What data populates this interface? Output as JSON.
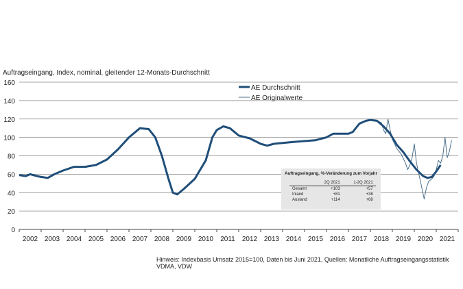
{
  "chart_data": {
    "type": "line",
    "title": "Auftragseingang, Index, nominal, gleitender 12-Monats-Durchschnitt",
    "ylim": [
      0,
      160
    ],
    "yticks": [
      0,
      20,
      40,
      60,
      80,
      100,
      120,
      140,
      160
    ],
    "xlim": [
      2002,
      2022
    ],
    "xtick_labels": [
      "2002",
      "2003",
      "2004",
      "2005",
      "2006",
      "2007",
      "2008",
      "2009",
      "2010",
      "2011",
      "2012",
      "2013",
      "2014",
      "2015",
      "2016",
      "2017",
      "2018",
      "2019",
      "2020",
      "2021"
    ],
    "grid": true,
    "legend": "top-right",
    "series": [
      {
        "name": "AE Durchschnitt",
        "color": "#1f4e79",
        "points": [
          [
            2002.0,
            59
          ],
          [
            2002.3,
            58
          ],
          [
            2002.5,
            60
          ],
          [
            2002.8,
            58
          ],
          [
            2003.0,
            57
          ],
          [
            2003.3,
            56
          ],
          [
            2003.6,
            60
          ],
          [
            2004.0,
            64
          ],
          [
            2004.5,
            68
          ],
          [
            2005.0,
            68
          ],
          [
            2005.5,
            70
          ],
          [
            2006.0,
            76
          ],
          [
            2006.5,
            87
          ],
          [
            2007.0,
            100
          ],
          [
            2007.5,
            110
          ],
          [
            2007.9,
            109
          ],
          [
            2008.2,
            100
          ],
          [
            2008.5,
            80
          ],
          [
            2008.8,
            55
          ],
          [
            2009.0,
            40
          ],
          [
            2009.2,
            38
          ],
          [
            2009.5,
            44
          ],
          [
            2010.0,
            55
          ],
          [
            2010.5,
            75
          ],
          [
            2010.8,
            100
          ],
          [
            2011.0,
            108
          ],
          [
            2011.3,
            112
          ],
          [
            2011.6,
            110
          ],
          [
            2012.0,
            102
          ],
          [
            2012.5,
            99
          ],
          [
            2013.0,
            93
          ],
          [
            2013.3,
            91
          ],
          [
            2013.6,
            93
          ],
          [
            2014.0,
            94
          ],
          [
            2014.5,
            95
          ],
          [
            2015.0,
            96
          ],
          [
            2015.5,
            97
          ],
          [
            2016.0,
            100
          ],
          [
            2016.3,
            104
          ],
          [
            2016.6,
            104
          ],
          [
            2017.0,
            104
          ],
          [
            2017.2,
            106
          ],
          [
            2017.5,
            115
          ],
          [
            2017.8,
            118
          ],
          [
            2018.0,
            119
          ],
          [
            2018.3,
            118
          ],
          [
            2018.6,
            112
          ],
          [
            2018.9,
            104
          ],
          [
            2019.2,
            92
          ],
          [
            2019.5,
            84
          ],
          [
            2019.8,
            74
          ],
          [
            2020.1,
            65
          ],
          [
            2020.4,
            58
          ],
          [
            2020.6,
            56
          ],
          [
            2020.8,
            57
          ],
          [
            2021.0,
            63
          ],
          [
            2021.2,
            70
          ]
        ]
      },
      {
        "name": "AE Originalwerte",
        "color": "#4a6f8a",
        "points": [
          [
            2018.3,
            118
          ],
          [
            2018.5,
            116
          ],
          [
            2018.6,
            108
          ],
          [
            2018.7,
            104
          ],
          [
            2018.8,
            120
          ],
          [
            2018.9,
            108
          ],
          [
            2019.0,
            98
          ],
          [
            2019.1,
            93
          ],
          [
            2019.2,
            88
          ],
          [
            2019.4,
            82
          ],
          [
            2019.6,
            72
          ],
          [
            2019.7,
            65
          ],
          [
            2019.8,
            70
          ],
          [
            2019.9,
            78
          ],
          [
            2020.0,
            93
          ],
          [
            2020.1,
            72
          ],
          [
            2020.3,
            50
          ],
          [
            2020.45,
            33
          ],
          [
            2020.55,
            45
          ],
          [
            2020.65,
            52
          ],
          [
            2020.8,
            55
          ],
          [
            2020.9,
            58
          ],
          [
            2021.0,
            65
          ],
          [
            2021.1,
            75
          ],
          [
            2021.2,
            72
          ],
          [
            2021.3,
            80
          ],
          [
            2021.4,
            100
          ],
          [
            2021.5,
            78
          ],
          [
            2021.6,
            85
          ],
          [
            2021.7,
            97
          ]
        ]
      }
    ]
  },
  "inset": {
    "title": "Auftragseingang, %-Veränderung zum Vorjahr",
    "columns": [
      "",
      "2Q 2021",
      "1-2Q 2021"
    ],
    "rows": [
      [
        "Gesamt",
        "+103",
        "+57"
      ],
      [
        "Inland",
        "+81",
        "+38"
      ],
      [
        "Ausland",
        "+114",
        "+68"
      ]
    ]
  },
  "note": "Hinweis: Indexbasis Umsatz 2015=100, Daten bis Juni 2021, Quellen: Monatliche Auftragseingangsstatistik VDMA, VDW"
}
